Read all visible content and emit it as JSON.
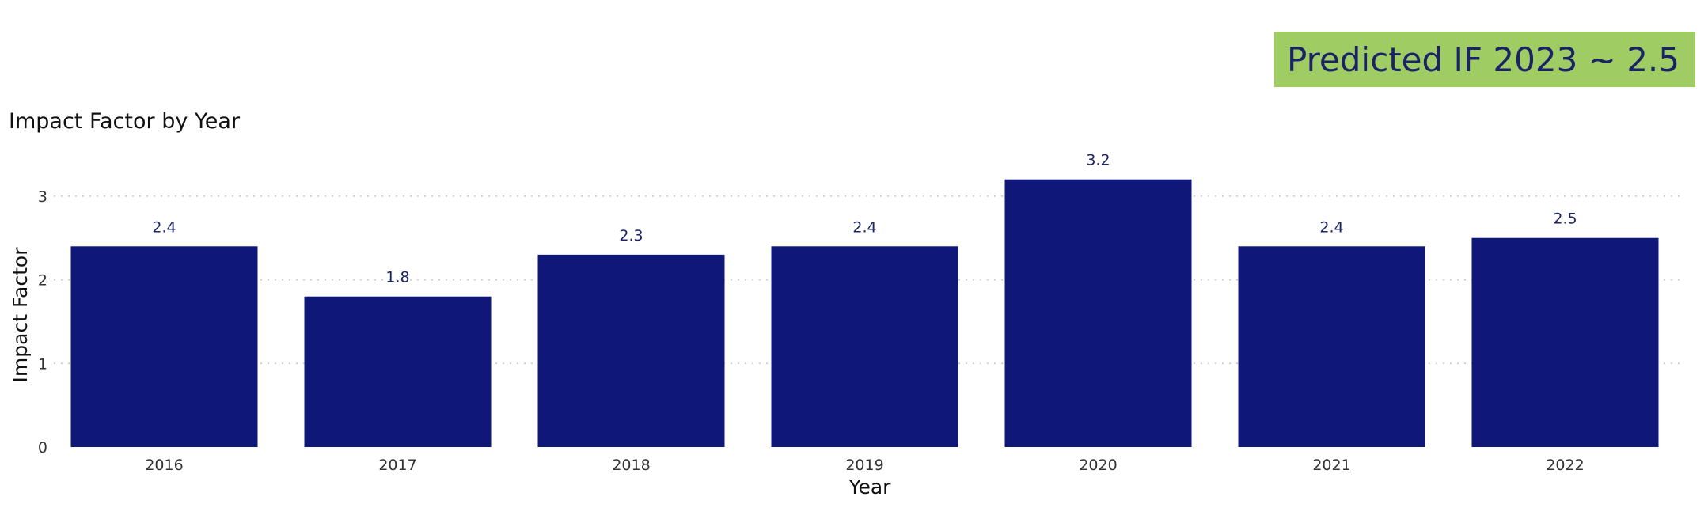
{
  "banner": {
    "text": "Predicted IF 2023 ~ 2.5",
    "background": "#9fcd63",
    "color": "#1a2366"
  },
  "chart_data": {
    "type": "bar",
    "title": "Impact Factor by Year",
    "xlabel": "Year",
    "ylabel": "Impact Factor",
    "categories": [
      "2016",
      "2017",
      "2018",
      "2019",
      "2020",
      "2021",
      "2022"
    ],
    "values": [
      2.4,
      1.8,
      2.3,
      2.4,
      3.2,
      2.4,
      2.5
    ],
    "data_labels": [
      "2.4",
      "1.8",
      "2.3",
      "2.4",
      "3.2",
      "2.4",
      "2.5"
    ],
    "yticks": [
      0,
      1,
      2,
      3
    ],
    "ylim": [
      0,
      3.5
    ],
    "grid": true,
    "bar_color": "#0f1878",
    "label_color": "#1a2366"
  }
}
